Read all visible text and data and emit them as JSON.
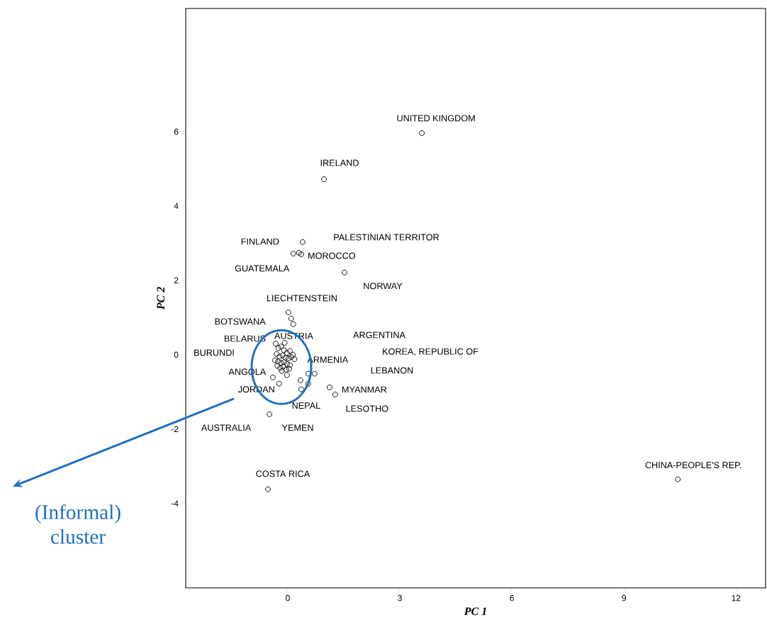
{
  "chart_data": {
    "type": "scatter",
    "xlabel": "PC 1",
    "ylabel": "PC 2",
    "color": "#000000",
    "marker": "circle",
    "x": [
      3.59,
      0.97,
      0.4,
      0.15,
      0.3,
      0.36,
      1.52,
      0.02,
      0.09,
      0.15,
      -0.02,
      0.34,
      0.55,
      0.72,
      0.55,
      0.36,
      -0.4,
      -0.23,
      1.12,
      1.27,
      -0.49,
      -0.53,
      10.44,
      -0.32,
      -0.25,
      -0.18,
      -0.1,
      -0.02,
      0.06,
      0.14,
      -0.3,
      -0.22,
      -0.14,
      -0.06,
      0.02,
      0.1,
      0.18,
      -0.34,
      -0.26,
      -0.18,
      -0.1,
      -0.02,
      0.06,
      -0.28,
      -0.2,
      -0.12,
      -0.04,
      0.04,
      -0.08,
      -0.16
    ],
    "values": [
      5.96,
      4.72,
      3.03,
      2.72,
      2.74,
      2.7,
      2.21,
      1.14,
      0.97,
      0.82,
      -0.55,
      -0.69,
      -0.51,
      -0.51,
      -0.78,
      -0.93,
      -0.61,
      -0.78,
      -0.88,
      -1.07,
      -1.6,
      -3.62,
      -3.35,
      0.3,
      0.18,
      0.22,
      0.12,
      0.05,
      0.1,
      0.0,
      0.02,
      -0.05,
      -0.02,
      -0.08,
      -0.1,
      -0.06,
      -0.12,
      -0.15,
      -0.18,
      -0.22,
      -0.2,
      -0.25,
      -0.28,
      -0.3,
      -0.35,
      -0.32,
      -0.4,
      -0.38,
      0.32,
      -0.44
    ],
    "xlim": [
      -2.73,
      12.79
    ],
    "ylim": [
      -6.27,
      9.31
    ],
    "xticks": [
      0,
      3,
      6,
      9,
      12
    ],
    "yticks": [
      -4,
      -2,
      0,
      2,
      4,
      6
    ],
    "annotations": [
      {
        "text": "UNITED KINGDOM",
        "x": 3.59,
        "y": 5.96
      },
      {
        "text": "IRELAND",
        "x": 0.97,
        "y": 4.72
      },
      {
        "text": "FINLAND",
        "x": 0.15,
        "y": 2.72
      },
      "PALESTINIAN TERRITOR",
      {
        "text": "MOROCCO",
        "x": 0.36,
        "y": 2.7
      },
      {
        "text": "GUATEMALA",
        "x": 0.3,
        "y": 2.74
      },
      {
        "text": "NORWAY",
        "x": 1.52,
        "y": 2.21
      },
      {
        "text": "LIECHTENSTEIN",
        "x": 0.02,
        "y": 1.14
      },
      {
        "text": "BOTSWANA",
        "x": 0.09,
        "y": 0.97
      },
      {
        "text": "BELARUS",
        "x": -0.16,
        "y": 0.32
      },
      {
        "text": "AUSTRIA",
        "x": -0.18,
        "y": 0.22
      },
      "ARGENTINA",
      "BURUNDI",
      {
        "text": "ARMENIA",
        "x": 0.14,
        "y": 0.0
      },
      "KOREA, REPUBLIC OF",
      {
        "text": "ANGOLA",
        "x": -0.4,
        "y": -0.61
      },
      "LEBANON",
      {
        "text": "JORDAN",
        "x": -0.23,
        "y": -0.78
      },
      {
        "text": "MYANMAR",
        "x": 1.12,
        "y": -0.88
      },
      {
        "text": "NEPAL",
        "x": 0.36,
        "y": -0.93
      },
      {
        "text": "LESOTHO",
        "x": 1.27,
        "y": -1.07
      },
      {
        "text": "AUSTRALIA",
        "x": -0.49,
        "y": -1.6
      },
      {
        "text": "YEMEN",
        "x": -0.49,
        "y": -1.6
      },
      {
        "text": "COSTA RICA",
        "x": -0.53,
        "y": -3.62
      },
      {
        "text": "CHINA-PEOPLE'S REP.",
        "x": 10.44,
        "y": -3.35
      },
      "(Informal) cluster"
    ]
  }
}
